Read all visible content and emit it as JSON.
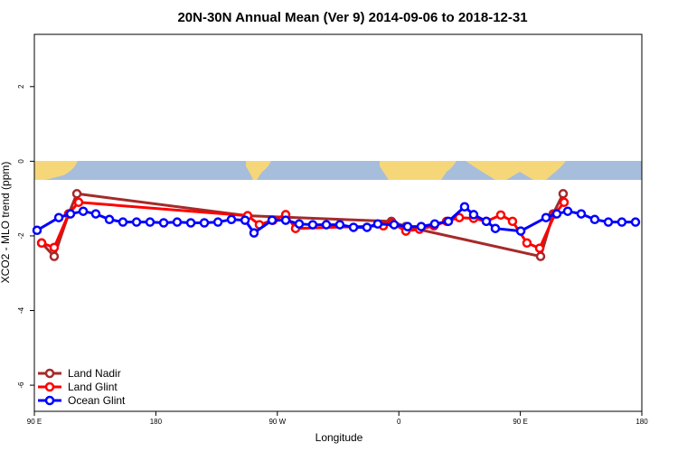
{
  "chart_data": {
    "type": "line",
    "title": "20N-30N Annual Mean (Ver 9)   2014-09-06 to 2018-12-31",
    "x_label": "Longitude",
    "y_label": "XCO2 - MLO trend (ppm)",
    "xlim": [
      90,
      540
    ],
    "ylim": [
      -6.7,
      3.4
    ],
    "xticks": [
      {
        "value": 90,
        "label": "90 E"
      },
      180,
      {
        "value": 270,
        "label": "90 W"
      },
      {
        "value": 360,
        "label": "0"
      },
      {
        "value": 450,
        "label": "90 E"
      },
      {
        "value": 540,
        "label": "180"
      }
    ],
    "yticks": [
      -6,
      -4,
      -2,
      0,
      2
    ],
    "legend": "bottom-left",
    "series": [
      {
        "name": "Land Nadir",
        "color": "#a52a2a",
        "x": [
          95.4,
          104.7,
          115.4,
          121.5,
          248.0,
          354.5,
          365.2,
          465.0,
          474.3,
          481.7
        ],
        "values": [
          -2.19,
          -2.55,
          -1.41,
          -0.87,
          -1.46,
          -1.61,
          -1.75,
          -2.55,
          -1.41,
          -0.87
        ]
      },
      {
        "name": "Land Glint",
        "color": "#ff0000",
        "x": [
          95.4,
          104.7,
          115.4,
          122.8,
          248.0,
          256.7,
          266.8,
          276.2,
          283.5,
          348.5,
          355.2,
          365.2,
          375.3,
          386.0,
          395.4,
          404.8,
          415.4,
          424.8,
          435.5,
          444.2,
          454.9,
          464.3,
          475.7,
          482.4
        ],
        "values": [
          -2.19,
          -2.31,
          -1.41,
          -1.1,
          -1.46,
          -1.7,
          -1.58,
          -1.43,
          -1.8,
          -1.73,
          -1.66,
          -1.87,
          -1.82,
          -1.73,
          -1.61,
          -1.51,
          -1.53,
          -1.61,
          -1.44,
          -1.61,
          -2.19,
          -2.33,
          -1.41,
          -1.1
        ]
      },
      {
        "name": "Ocean Glint",
        "color": "#0000ff",
        "x": [
          92.0,
          108.1,
          116.8,
          126.2,
          135.5,
          145.6,
          155.6,
          165.7,
          175.7,
          185.8,
          195.8,
          205.9,
          215.9,
          226.0,
          236.0,
          246.1,
          252.7,
          266.1,
          276.2,
          286.2,
          296.2,
          306.3,
          316.3,
          326.4,
          336.4,
          344.4,
          356.5,
          366.5,
          376.6,
          386.6,
          396.7,
          408.7,
          415.4,
          424.8,
          431.5,
          450.3,
          469.0,
          477.0,
          485.1,
          495.1,
          505.1,
          515.2,
          525.2,
          535.3
        ],
        "values": [
          -1.85,
          -1.51,
          -1.41,
          -1.34,
          -1.41,
          -1.56,
          -1.63,
          -1.63,
          -1.63,
          -1.65,
          -1.63,
          -1.65,
          -1.65,
          -1.63,
          -1.56,
          -1.58,
          -1.92,
          -1.58,
          -1.58,
          -1.68,
          -1.7,
          -1.7,
          -1.7,
          -1.77,
          -1.77,
          -1.68,
          -1.7,
          -1.75,
          -1.75,
          -1.68,
          -1.61,
          -1.22,
          -1.43,
          -1.61,
          -1.8,
          -1.87,
          -1.51,
          -1.41,
          -1.34,
          -1.41,
          -1.56,
          -1.63,
          -1.63,
          -1.63
        ]
      }
    ]
  }
}
